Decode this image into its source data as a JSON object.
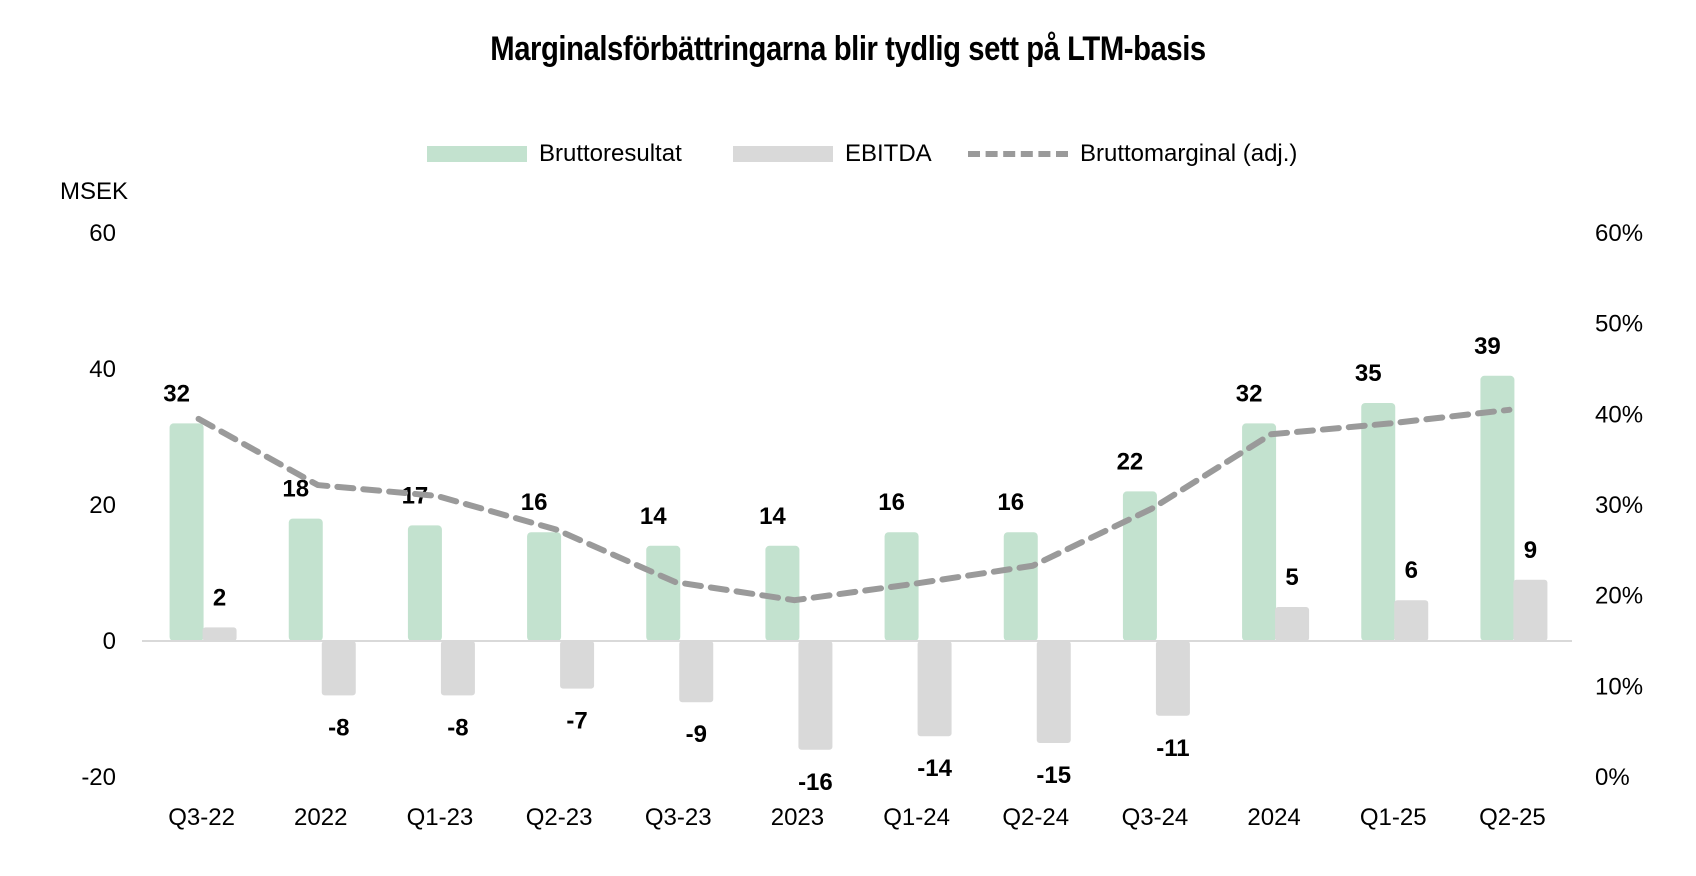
{
  "chart_data": {
    "type": "bar",
    "title": "Marginalsförbättringarna blir tydlig sett på LTM-basis",
    "ylabel": "MSEK",
    "ylim": [
      -20,
      60
    ],
    "y_ticks": [
      "60",
      "40",
      "20",
      "0",
      "-20"
    ],
    "y2lim": [
      0,
      60
    ],
    "y2_ticks": [
      "60%",
      "50%",
      "40%",
      "30%",
      "20%",
      "10%",
      "0%"
    ],
    "categories": [
      "Q3-22",
      "2022",
      "Q1-23",
      "Q2-23",
      "Q3-23",
      "2023",
      "Q1-24",
      "Q2-24",
      "Q3-24",
      "2024",
      "Q1-25",
      "Q2-25"
    ],
    "series": [
      {
        "name": "Bruttoresultat",
        "kind": "bar",
        "color": "#c3e2cf",
        "values": [
          32,
          18,
          17,
          16,
          14,
          14,
          16,
          16,
          22,
          32,
          35,
          39
        ],
        "labels": [
          "32",
          "18",
          "17",
          "16",
          "14",
          "14",
          "16",
          "16",
          "22",
          "32",
          "35",
          "39"
        ]
      },
      {
        "name": "EBITDA",
        "kind": "bar",
        "color": "#d9d9d9",
        "values": [
          2,
          -8,
          -8,
          -7,
          -9,
          -16,
          -14,
          -15,
          -11,
          5,
          6,
          9
        ],
        "labels": [
          "2",
          "-8",
          "-8",
          "-7",
          "-9",
          "-16",
          "-14",
          "-15",
          "-11",
          "5",
          "6",
          "9"
        ]
      },
      {
        "name": "Bruttomarginal (adj.)",
        "kind": "line",
        "axis": "secondary",
        "color": "#9a9a9a",
        "values": [
          39.5,
          32.2,
          31.0,
          27.3,
          21.5,
          19.5,
          21.3,
          23.3,
          29.6,
          37.8,
          39.0,
          40.5
        ]
      }
    ],
    "legend_position": "top-center",
    "grid": false
  }
}
